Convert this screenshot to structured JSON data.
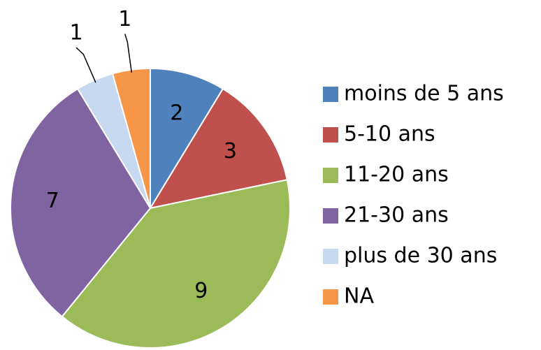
{
  "chart_data": {
    "type": "pie",
    "categories": [
      "moins de 5 ans",
      "5-10 ans",
      "11-20 ans",
      "21-30 ans",
      "plus de 30 ans",
      "NA"
    ],
    "values": [
      2,
      3,
      9,
      7,
      1,
      1
    ],
    "colors": [
      "#4f81bd",
      "#c0504d",
      "#9bbb59",
      "#8064a2",
      "#c6d9f1",
      "#f79646"
    ],
    "legend": "right"
  }
}
